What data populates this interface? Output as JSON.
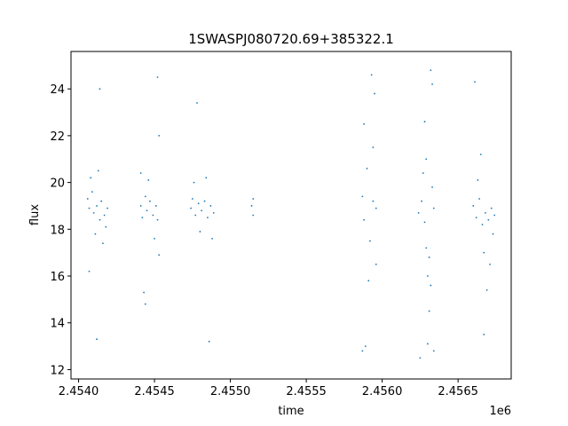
{
  "chart_data": {
    "type": "scatter",
    "title": "1SWASPJ080720.69+385322.1",
    "xlabel": "time",
    "ylabel": "flux",
    "x_offset_label": "1e6",
    "x_scale": 1000000,
    "xlim": [
      2.45395,
      2.45685
    ],
    "ylim": [
      11.6,
      25.6
    ],
    "x_ticks": [
      2.454,
      2.4545,
      2.455,
      2.4555,
      2.456,
      2.4565
    ],
    "x_tick_labels": [
      "2.4540",
      "2.4545",
      "2.4550",
      "2.4555",
      "2.4560",
      "2.4565"
    ],
    "y_ticks": [
      12,
      14,
      16,
      18,
      20,
      22,
      24
    ],
    "y_tick_labels": [
      "12",
      "14",
      "16",
      "18",
      "20",
      "22",
      "24"
    ],
    "grid": false,
    "point_color": "#1f77b4",
    "series": [
      {
        "x": [
          2.45406,
          2.45407,
          2.45409,
          2.4541,
          2.45412,
          2.45414,
          2.45415,
          2.45417,
          2.45419,
          2.45408,
          2.45411,
          2.45413,
          2.45416,
          2.45418,
          2.45407,
          2.45412,
          2.45414,
          2.45441,
          2.45442,
          2.45444,
          2.45445,
          2.45447,
          2.45449,
          2.45451,
          2.45452,
          2.45443,
          2.45446,
          2.4545,
          2.45453,
          2.45441,
          2.45444,
          2.45452,
          2.45453,
          2.45474,
          2.45475,
          2.45477,
          2.45479,
          2.45481,
          2.45483,
          2.45485,
          2.45487,
          2.45489,
          2.45476,
          2.4548,
          2.45484,
          2.45488,
          2.45478,
          2.45486,
          2.45514,
          2.45515,
          2.45515,
          2.45587,
          2.45588,
          2.4559,
          2.45592,
          2.45594,
          2.45596,
          2.45588,
          2.45591,
          2.45595,
          2.45589,
          2.45593,
          2.45587,
          2.45596,
          2.45594,
          2.45624,
          2.45626,
          2.45628,
          2.4563,
          2.45632,
          2.45634,
          2.45627,
          2.45629,
          2.45631,
          2.45633,
          2.45628,
          2.4563,
          2.45632,
          2.45625,
          2.45631,
          2.45629,
          2.45634,
          2.45633,
          2.4566,
          2.45662,
          2.45664,
          2.45666,
          2.45668,
          2.4567,
          2.45672,
          2.45674,
          2.45663,
          2.45667,
          2.45671,
          2.45665,
          2.45669,
          2.45667,
          2.45661,
          2.45673
        ],
        "y": [
          19.3,
          18.9,
          19.6,
          18.7,
          19.0,
          18.4,
          19.2,
          18.6,
          18.9,
          20.2,
          17.8,
          20.5,
          17.4,
          18.1,
          16.2,
          13.3,
          24.0,
          19.0,
          18.5,
          19.4,
          18.8,
          19.2,
          18.6,
          19.0,
          18.4,
          15.3,
          20.1,
          17.6,
          22.0,
          20.4,
          14.8,
          24.5,
          16.9,
          18.9,
          19.3,
          18.6,
          19.1,
          18.8,
          19.2,
          18.5,
          19.0,
          18.7,
          20.0,
          17.9,
          20.2,
          17.6,
          23.4,
          13.2,
          19.0,
          18.6,
          19.3,
          19.4,
          18.4,
          20.6,
          17.5,
          19.2,
          18.9,
          22.5,
          15.8,
          23.8,
          13.0,
          24.6,
          12.8,
          16.5,
          21.5,
          18.7,
          19.2,
          18.3,
          16.0,
          15.6,
          18.9,
          20.4,
          17.2,
          14.5,
          19.8,
          22.6,
          13.1,
          24.8,
          12.5,
          16.8,
          21.0,
          12.8,
          24.2,
          19.0,
          18.5,
          19.3,
          18.2,
          18.7,
          18.4,
          18.9,
          18.6,
          20.1,
          17.0,
          16.5,
          21.2,
          15.4,
          13.5,
          24.3,
          17.8
        ]
      }
    ]
  }
}
